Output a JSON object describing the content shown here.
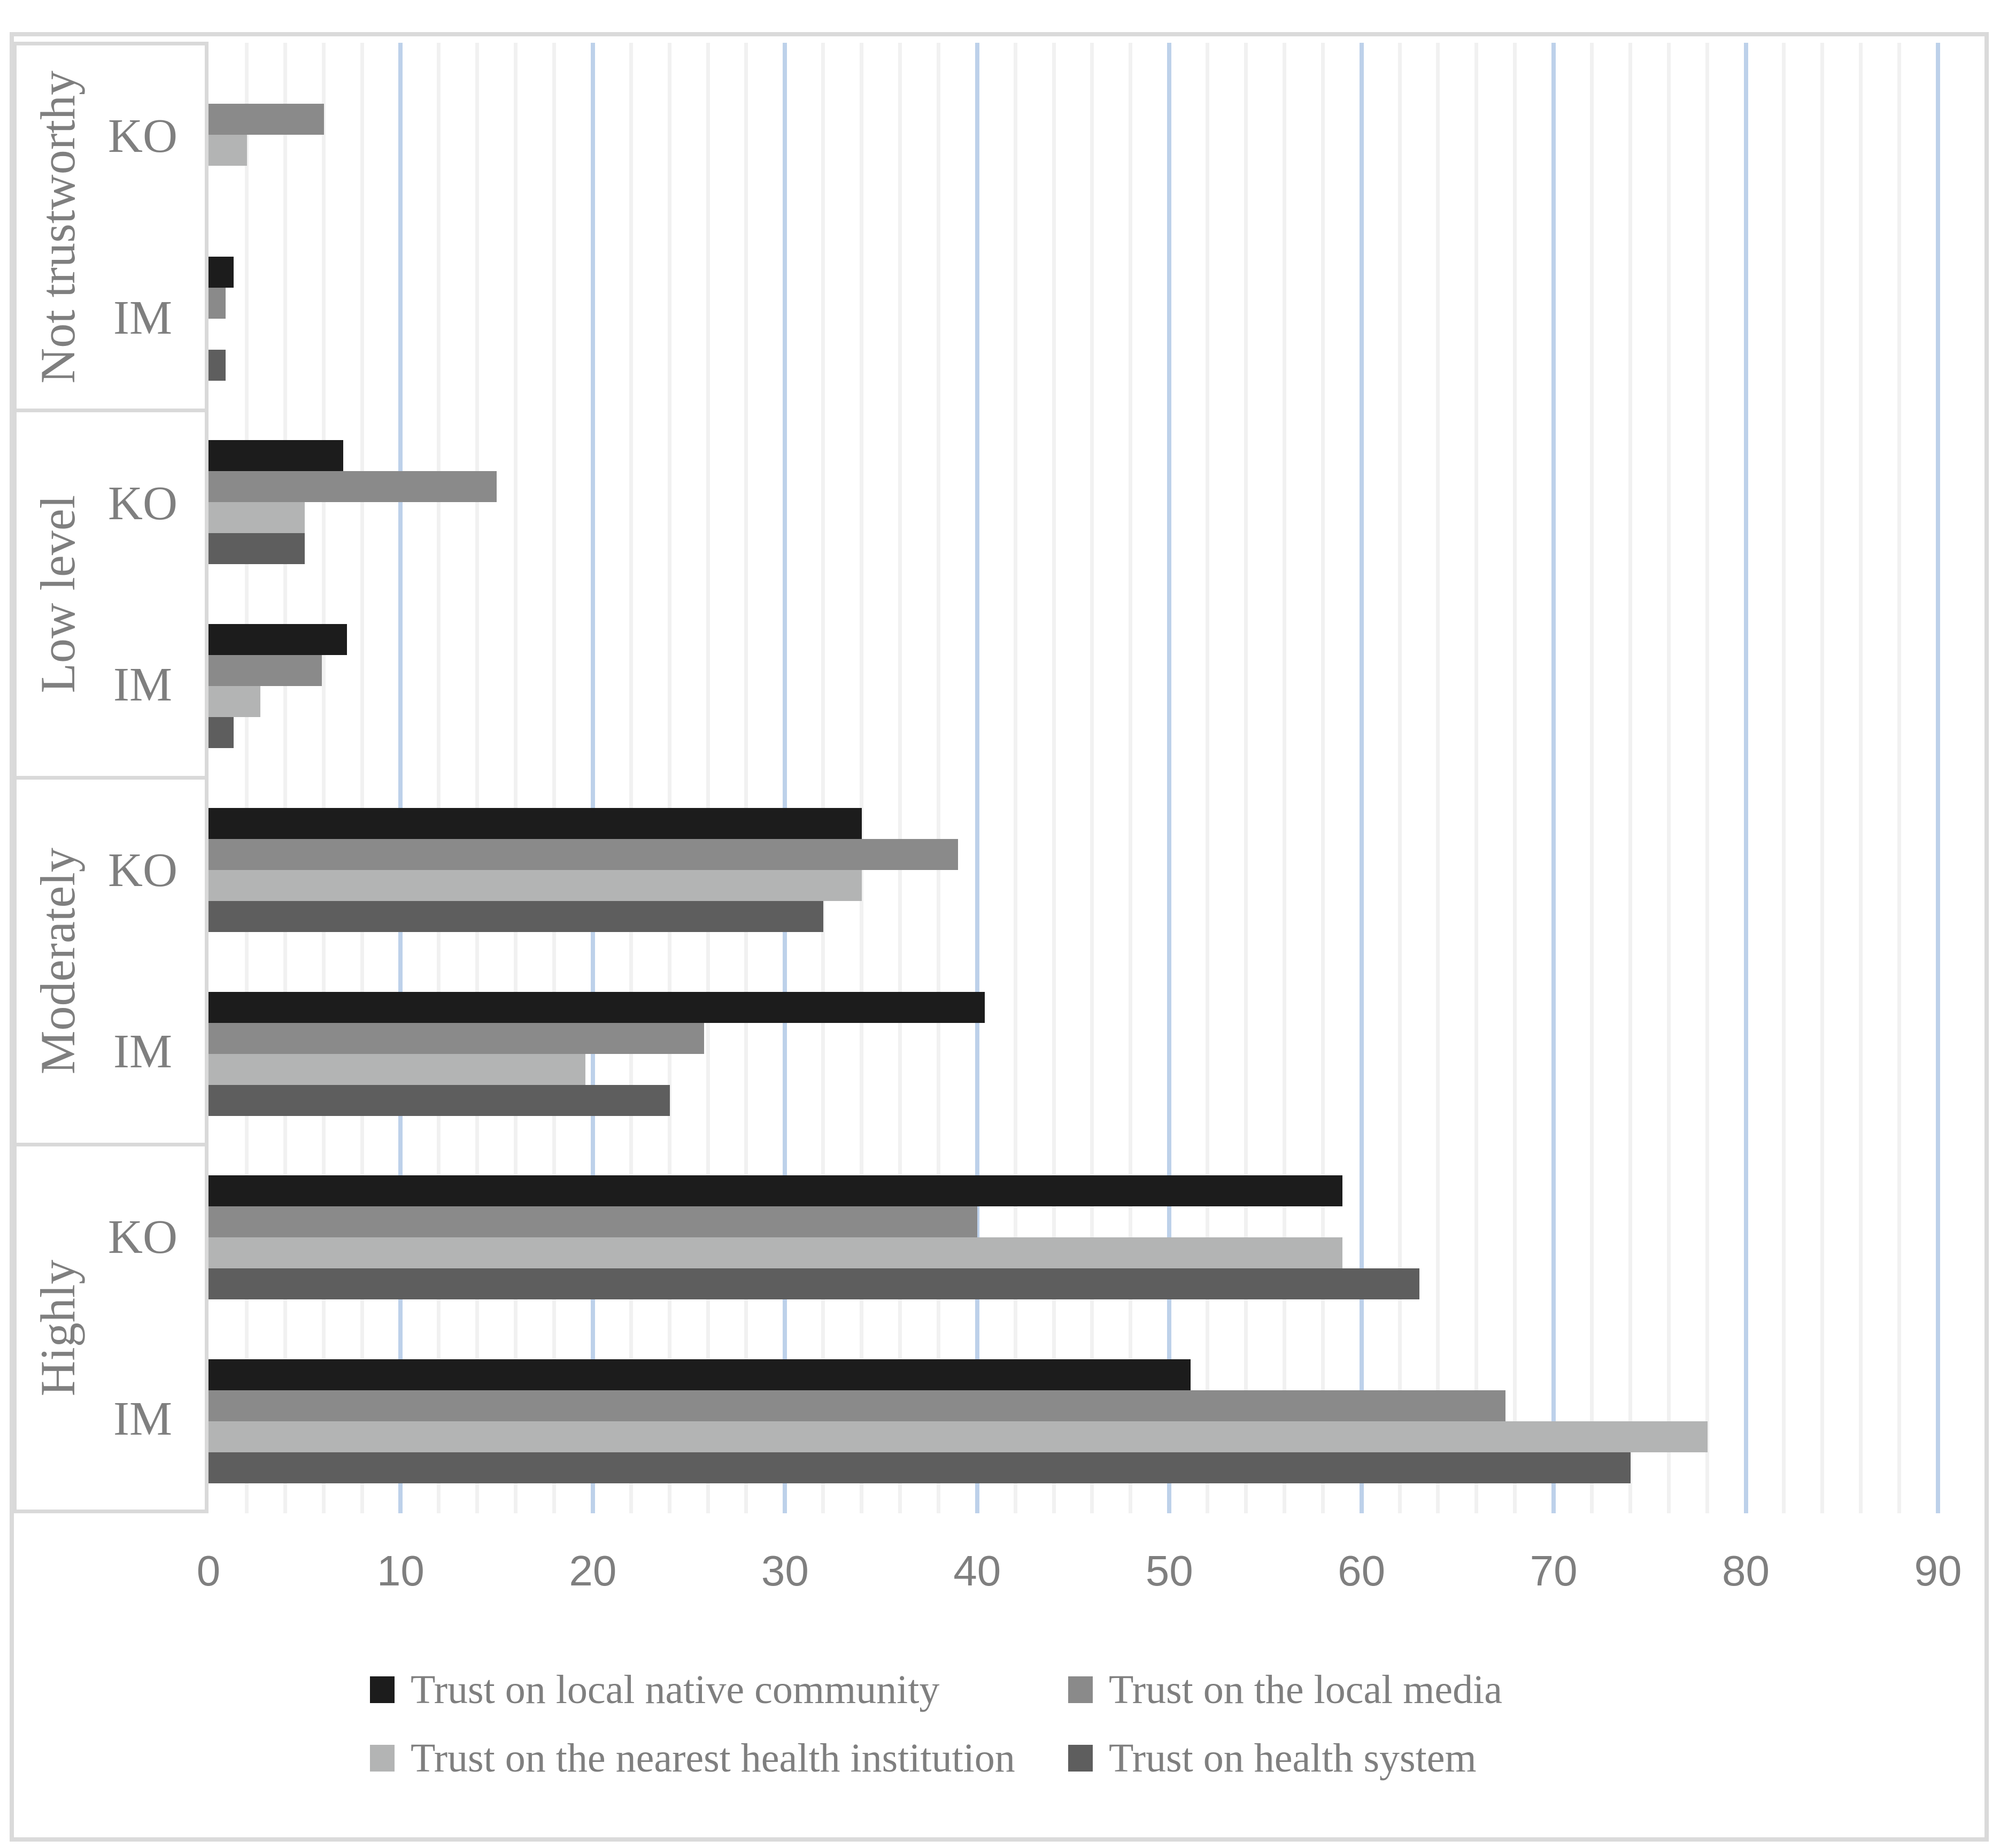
{
  "chart_data": {
    "type": "bar",
    "orientation": "horizontal",
    "title": "",
    "xlabel": "",
    "ylabel": "",
    "x_axis": {
      "min": 0,
      "max": 90,
      "major_tick": 10,
      "minor_gridline_interval": 2,
      "tick_labels": [
        "0",
        "10",
        "20",
        "30",
        "40",
        "50",
        "60",
        "70",
        "80",
        "90"
      ]
    },
    "categories": [
      {
        "label": "Not trustworthy",
        "subcategories": [
          "KO",
          "IM"
        ]
      },
      {
        "label": "Low level",
        "subcategories": [
          "KO",
          "IM"
        ]
      },
      {
        "label": "Moderately",
        "subcategories": [
          "KO",
          "IM"
        ]
      },
      {
        "label": "Highly",
        "subcategories": [
          "KO",
          "IM"
        ]
      }
    ],
    "series": [
      {
        "name": "Trust on local native community",
        "color": "#1c1c1c",
        "values": [
          [
            0,
            1.3
          ],
          [
            7,
            7.2
          ],
          [
            34,
            40.4
          ],
          [
            59,
            51.1
          ]
        ]
      },
      {
        "name": "Trust on the local media",
        "color": "#8a8a8a",
        "values": [
          [
            6,
            0.9
          ],
          [
            15,
            5.9
          ],
          [
            39,
            25.8
          ],
          [
            40,
            67.5
          ]
        ]
      },
      {
        "name": "Trust on the nearest health institution",
        "color": "#b3b4b4",
        "values": [
          [
            2,
            0
          ],
          [
            5,
            2.7
          ],
          [
            34,
            19.6
          ],
          [
            59,
            78
          ]
        ]
      },
      {
        "name": "Trust on health system",
        "color": "#5e5e5e",
        "values": [
          [
            0,
            0.9
          ],
          [
            5,
            1.3
          ],
          [
            32,
            24
          ],
          [
            63,
            74
          ]
        ]
      }
    ],
    "legend_position": "bottom",
    "legend_columns": 2,
    "gridlines": {
      "minor_color": "#f1f1f1",
      "major_color": "#bdd1ea"
    },
    "axis_text_color": "#7f7f7f",
    "border_color": "#d9d9d9",
    "background": "#ffffff"
  }
}
